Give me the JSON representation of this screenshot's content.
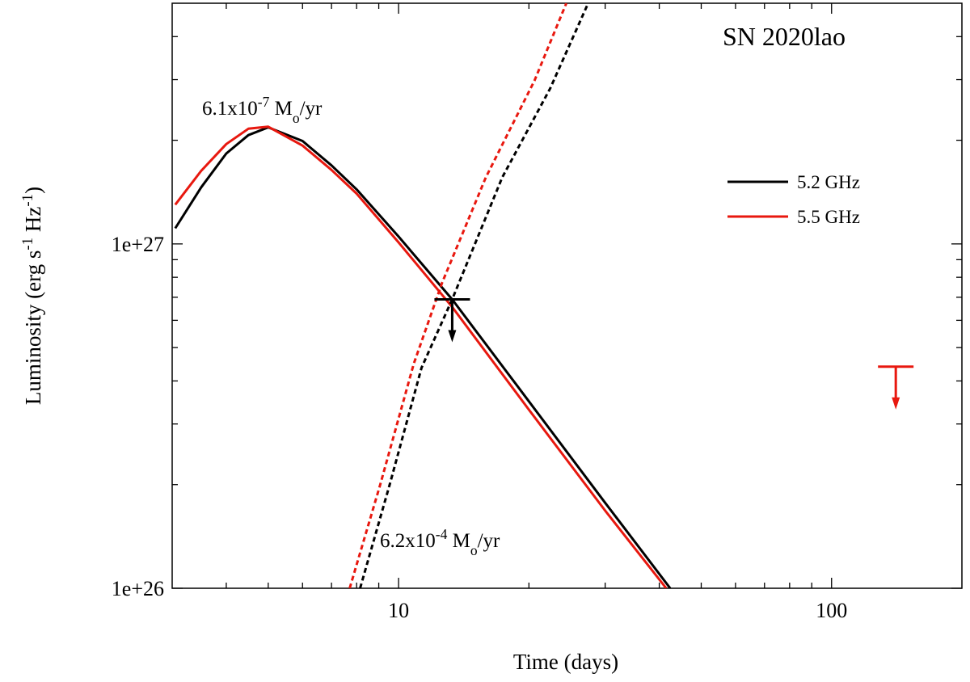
{
  "chart_data": {
    "type": "line",
    "title": "SN 2020lao",
    "xlabel": "Time (days)",
    "ylabel": [
      {
        "text": "Luminosity (erg s"
      },
      {
        "text": "-1",
        "sup": true
      },
      {
        "text": " Hz"
      },
      {
        "text": "-1",
        "sup": true
      },
      {
        "text": ")"
      }
    ],
    "xscale": "log",
    "yscale": "log",
    "xlim": [
      3,
      200
    ],
    "ylim": [
      1e+26,
      5e+27
    ],
    "xticks": [
      10,
      100
    ],
    "yticks": [
      {
        "value": 1e+26,
        "label": "1e+26"
      },
      {
        "value": 1e+27,
        "label": "1e+27"
      }
    ],
    "xminorticks": [
      4,
      5,
      6,
      7,
      8,
      9,
      20,
      30,
      40,
      50,
      60,
      70,
      80,
      90
    ],
    "yminorticks": [
      2e+26,
      3e+26,
      4e+26,
      5e+26,
      6e+26,
      7e+26,
      8e+26,
      9e+26,
      2e+27,
      3e+27,
      4e+27
    ],
    "legend": "right",
    "series": [
      {
        "name": "5.2 GHz",
        "color": "#000000",
        "x": [
          3.05,
          3.5,
          4,
          4.5,
          5,
          6,
          7,
          8,
          10,
          13.3,
          20,
          30,
          42.4
        ],
        "y": [
          1.11e+27,
          1.46e+27,
          1.83e+27,
          2.07e+27,
          2.18e+27,
          1.99e+27,
          1.69e+27,
          1.44e+27,
          1.05e+27,
          6.9e+26,
          3.49e+26,
          1.77e+26,
          1e+26
        ]
      },
      {
        "name": "5.5 GHz",
        "color": "#e8180f",
        "x": [
          3.05,
          3.5,
          4,
          4.5,
          5,
          6,
          7,
          8,
          10,
          13.3,
          20,
          30,
          41.5
        ],
        "y": [
          1.3e+27,
          1.63e+27,
          1.95e+27,
          2.16e+27,
          2.19e+27,
          1.93e+27,
          1.64e+27,
          1.4e+27,
          1.01e+27,
          6.56e+26,
          3.3e+26,
          1.68e+26,
          1e+26
        ]
      },
      {
        "color": "#000000",
        "dash": true,
        "x": [
          8.15,
          9.54,
          11.3,
          13.3,
          17.35,
          22.4,
          27.4
        ],
        "y": [
          1e+26,
          2e+26,
          4.37e+26,
          6.9e+26,
          1.56e+27,
          2.83e+27,
          5e+27
        ]
      },
      {
        "color": "#e8180f",
        "dash": true,
        "x": [
          7.71,
          9.07,
          10.84,
          12.6,
          15.9,
          20.6,
          24.4
        ],
        "y": [
          1e+26,
          2e+26,
          4.49e+26,
          7.71e+26,
          1.56e+27,
          2.98e+27,
          5e+27
        ]
      }
    ],
    "upper_limits": [
      {
        "color": "#000000",
        "x": 13.3,
        "y": 6.9e+26
      },
      {
        "color": "#e8180f",
        "x": 140.7,
        "y": 4.4e+26
      }
    ],
    "annotations": [
      {
        "parts": [
          {
            "text": "6.1x10"
          },
          {
            "text": "-7",
            "sup": true
          },
          {
            "text": " M"
          },
          {
            "text": "o",
            "sub": true
          },
          {
            "text": "/yr"
          }
        ]
      },
      {
        "parts": [
          {
            "text": "6.2x10"
          },
          {
            "text": "-4",
            "sup": true
          },
          {
            "text": " M"
          },
          {
            "text": "o",
            "sub": true
          },
          {
            "text": "/yr"
          }
        ]
      }
    ]
  }
}
